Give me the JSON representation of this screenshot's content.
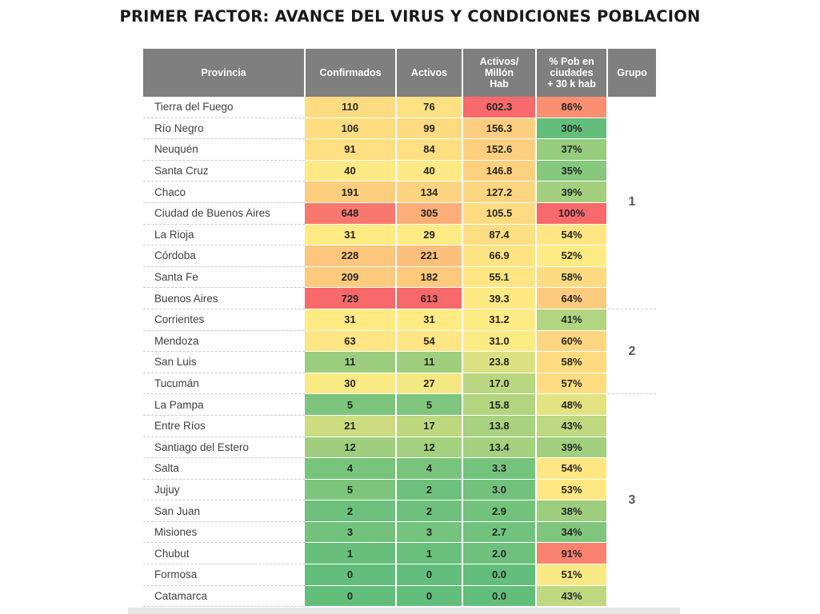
{
  "title": "PRIMER FACTOR: AVANCE DEL VIRUS Y CONDICIONES POBLACION",
  "colors": {
    "header_bg": "#7f7f7f",
    "red": "#f8696b",
    "yellow": "#ffeb84",
    "green": "#63be7b"
  },
  "headers": [
    "Provincia",
    "Confirmados",
    "Activos",
    "Activos/\nMillón\nHab",
    "% Pob en\nciudades\n+ 30 k hab",
    "Grupo"
  ],
  "chart_data": {
    "type": "table",
    "title": "PRIMER FACTOR: AVANCE DEL VIRUS Y CONDICIONES POBLACION",
    "columns": [
      "Provincia",
      "Confirmados",
      "Activos",
      "Activos/ Millón Hab",
      "% Pob en ciudades + 30 k hab",
      "Grupo"
    ],
    "rows": [
      {
        "provincia": "Tierra del Fuego",
        "confirmados": "110",
        "activos": "76",
        "activos_millon": "602.3",
        "pob": "86%",
        "grupo": "1"
      },
      {
        "provincia": "Río Negro",
        "confirmados": "106",
        "activos": "99",
        "activos_millon": "156.3",
        "pob": "30%",
        "grupo": "1"
      },
      {
        "provincia": "Neuquén",
        "confirmados": "91",
        "activos": "84",
        "activos_millon": "152.6",
        "pob": "37%",
        "grupo": "1"
      },
      {
        "provincia": "Santa Cruz",
        "confirmados": "40",
        "activos": "40",
        "activos_millon": "146.8",
        "pob": "35%",
        "grupo": "1"
      },
      {
        "provincia": "Chaco",
        "confirmados": "191",
        "activos": "134",
        "activos_millon": "127.2",
        "pob": "39%",
        "grupo": "1"
      },
      {
        "provincia": "Ciudad de Buenos Aires",
        "confirmados": "648",
        "activos": "305",
        "activos_millon": "105.5",
        "pob": "100%",
        "grupo": "1"
      },
      {
        "provincia": "La Rioja",
        "confirmados": "31",
        "activos": "29",
        "activos_millon": "87.4",
        "pob": "54%",
        "grupo": "1"
      },
      {
        "provincia": "Córdoba",
        "confirmados": "228",
        "activos": "221",
        "activos_millon": "66.9",
        "pob": "52%",
        "grupo": "1"
      },
      {
        "provincia": "Santa Fe",
        "confirmados": "209",
        "activos": "182",
        "activos_millon": "55.1",
        "pob": "58%",
        "grupo": "1"
      },
      {
        "provincia": "Buenos Aires",
        "confirmados": "729",
        "activos": "613",
        "activos_millon": "39.3",
        "pob": "64%",
        "grupo": "1"
      },
      {
        "provincia": "Corrientes",
        "confirmados": "31",
        "activos": "31",
        "activos_millon": "31.2",
        "pob": "41%",
        "grupo": "2"
      },
      {
        "provincia": "Mendoza",
        "confirmados": "63",
        "activos": "54",
        "activos_millon": "31.0",
        "pob": "60%",
        "grupo": "2"
      },
      {
        "provincia": "San Luis",
        "confirmados": "11",
        "activos": "11",
        "activos_millon": "23.8",
        "pob": "58%",
        "grupo": "2"
      },
      {
        "provincia": "Tucumán",
        "confirmados": "30",
        "activos": "27",
        "activos_millon": "17.0",
        "pob": "57%",
        "grupo": "2"
      },
      {
        "provincia": "La Pampa",
        "confirmados": "5",
        "activos": "5",
        "activos_millon": "15.8",
        "pob": "48%",
        "grupo": "3"
      },
      {
        "provincia": "Entre Ríos",
        "confirmados": "21",
        "activos": "17",
        "activos_millon": "13.8",
        "pob": "43%",
        "grupo": "3"
      },
      {
        "provincia": "Santiago del Estero",
        "confirmados": "12",
        "activos": "12",
        "activos_millon": "13.4",
        "pob": "39%",
        "grupo": "3"
      },
      {
        "provincia": "Salta",
        "confirmados": "4",
        "activos": "4",
        "activos_millon": "3.3",
        "pob": "54%",
        "grupo": "3"
      },
      {
        "provincia": "Jujuy",
        "confirmados": "5",
        "activos": "2",
        "activos_millon": "3.0",
        "pob": "53%",
        "grupo": "3"
      },
      {
        "provincia": "San Juan",
        "confirmados": "2",
        "activos": "2",
        "activos_millon": "2.9",
        "pob": "38%",
        "grupo": "3"
      },
      {
        "provincia": "Misiones",
        "confirmados": "3",
        "activos": "3",
        "activos_millon": "2.7",
        "pob": "34%",
        "grupo": "3"
      },
      {
        "provincia": "Chubut",
        "confirmados": "1",
        "activos": "1",
        "activos_millon": "2.0",
        "pob": "91%",
        "grupo": "3"
      },
      {
        "provincia": "Formosa",
        "confirmados": "0",
        "activos": "0",
        "activos_millon": "0.0",
        "pob": "51%",
        "grupo": "3"
      },
      {
        "provincia": "Catamarca",
        "confirmados": "0",
        "activos": "0",
        "activos_millon": "0.0",
        "pob": "43%",
        "grupo": "3"
      }
    ],
    "groups": [
      {
        "label": "1",
        "rows": 10
      },
      {
        "label": "2",
        "rows": 4
      },
      {
        "label": "3",
        "rows": 10
      }
    ],
    "color_scale": "green-yellow-red per column"
  }
}
